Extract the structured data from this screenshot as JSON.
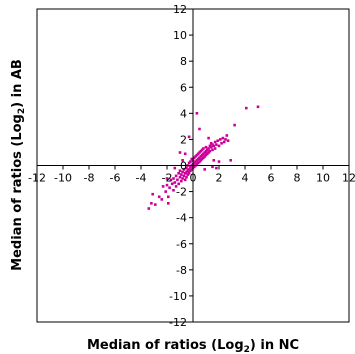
{
  "chart_data": {
    "type": "scatter",
    "xlabel": {
      "prefix": "Median of ratios (Log",
      "subscript": "2",
      "suffix": ") in NC"
    },
    "ylabel": {
      "prefix": "Median of ratios (Log",
      "subscript": "2",
      "suffix": ") in AB"
    },
    "xlim": [
      -12,
      12
    ],
    "ylim": [
      -12,
      12
    ],
    "x_ticks": [
      -12,
      -10,
      -8,
      -6,
      -4,
      -2,
      0,
      2,
      4,
      6,
      8,
      10,
      12
    ],
    "y_ticks": [
      -12,
      -10,
      -8,
      -6,
      -4,
      -2,
      0,
      2,
      4,
      6,
      8,
      10,
      12
    ],
    "grid": false,
    "axes_cross_at_origin": true,
    "marker_color": "#cc0099",
    "points": [
      [
        -3.4,
        -3.3
      ],
      [
        -3.2,
        -2.9
      ],
      [
        -2.9,
        -3.0
      ],
      [
        -2.6,
        -2.4
      ],
      [
        -2.4,
        -2.6
      ],
      [
        -2.3,
        -1.6
      ],
      [
        -2.1,
        -2.0
      ],
      [
        -2.0,
        -1.5
      ],
      [
        -1.9,
        -2.4
      ],
      [
        -1.8,
        -1.7
      ],
      [
        -1.7,
        -1.1
      ],
      [
        -1.6,
        -1.4
      ],
      [
        -1.5,
        -1.9
      ],
      [
        -1.5,
        -1.0
      ],
      [
        -1.4,
        -1.3
      ],
      [
        -1.3,
        -0.8
      ],
      [
        -1.3,
        -1.6
      ],
      [
        -1.2,
        -1.1
      ],
      [
        -1.1,
        -0.6
      ],
      [
        -1.1,
        -1.4
      ],
      [
        -1.0,
        -0.9
      ],
      [
        -1.0,
        -0.4
      ],
      [
        -0.9,
        -1.2
      ],
      [
        -0.9,
        -0.7
      ],
      [
        -0.8,
        -0.5
      ],
      [
        -0.8,
        -1.0
      ],
      [
        -0.7,
        -0.3
      ],
      [
        -0.7,
        -0.8
      ],
      [
        -0.6,
        -0.6
      ],
      [
        -0.6,
        -1.1
      ],
      [
        -0.5,
        -0.2
      ],
      [
        -0.5,
        -0.5
      ],
      [
        -0.5,
        -0.9
      ],
      [
        -0.4,
        -0.4
      ],
      [
        -0.4,
        0.0
      ],
      [
        -0.4,
        -0.7
      ],
      [
        -0.3,
        -0.3
      ],
      [
        -0.3,
        0.2
      ],
      [
        -0.3,
        -0.6
      ],
      [
        -0.2,
        -0.1
      ],
      [
        -0.2,
        -0.4
      ],
      [
        -0.2,
        0.3
      ],
      [
        -0.1,
        0.0
      ],
      [
        -0.1,
        -0.3
      ],
      [
        -0.1,
        0.5
      ],
      [
        0.0,
        0.1
      ],
      [
        0.0,
        -0.2
      ],
      [
        0.0,
        0.4
      ],
      [
        0.1,
        0.2
      ],
      [
        0.1,
        -0.1
      ],
      [
        0.1,
        0.6
      ],
      [
        0.2,
        0.3
      ],
      [
        0.2,
        0.0
      ],
      [
        0.2,
        0.7
      ],
      [
        0.3,
        0.4
      ],
      [
        0.3,
        0.1
      ],
      [
        0.3,
        0.8
      ],
      [
        0.4,
        0.5
      ],
      [
        0.4,
        0.2
      ],
      [
        0.4,
        0.9
      ],
      [
        0.5,
        0.6
      ],
      [
        0.5,
        0.3
      ],
      [
        0.5,
        1.0
      ],
      [
        0.6,
        0.7
      ],
      [
        0.6,
        0.4
      ],
      [
        0.6,
        1.1
      ],
      [
        0.7,
        0.8
      ],
      [
        0.7,
        0.5
      ],
      [
        0.7,
        1.2
      ],
      [
        0.8,
        0.9
      ],
      [
        0.8,
        0.6
      ],
      [
        0.8,
        1.3
      ],
      [
        0.9,
        1.0
      ],
      [
        0.9,
        0.7
      ],
      [
        1.0,
        1.1
      ],
      [
        1.0,
        0.8
      ],
      [
        1.0,
        1.4
      ],
      [
        1.1,
        1.2
      ],
      [
        1.1,
        0.9
      ],
      [
        1.2,
        1.3
      ],
      [
        1.2,
        1.0
      ],
      [
        1.3,
        1.5
      ],
      [
        1.3,
        1.1
      ],
      [
        1.4,
        1.4
      ],
      [
        1.4,
        1.7
      ],
      [
        1.5,
        1.2
      ],
      [
        1.5,
        1.6
      ],
      [
        1.6,
        1.5
      ],
      [
        1.7,
        1.8
      ],
      [
        1.7,
        1.3
      ],
      [
        1.8,
        1.6
      ],
      [
        1.9,
        1.9
      ],
      [
        2.0,
        1.5
      ],
      [
        2.1,
        2.0
      ],
      [
        2.2,
        1.7
      ],
      [
        2.3,
        2.1
      ],
      [
        2.4,
        1.8
      ],
      [
        2.5,
        2.0
      ],
      [
        2.7,
        1.9
      ],
      [
        2.9,
        0.4
      ],
      [
        2.0,
        0.3
      ],
      [
        1.5,
        -0.1
      ],
      [
        3.2,
        3.1
      ],
      [
        4.1,
        4.4
      ],
      [
        5.0,
        4.5
      ],
      [
        0.3,
        4.0
      ],
      [
        -0.3,
        2.2
      ],
      [
        0.5,
        2.8
      ],
      [
        -1.0,
        1.0
      ],
      [
        -2.0,
        -1.0
      ],
      [
        1.8,
        -0.2
      ],
      [
        -0.6,
        0.9
      ],
      [
        0.9,
        -0.3
      ],
      [
        2.6,
        2.3
      ],
      [
        -3.1,
        -2.2
      ],
      [
        -1.9,
        -2.9
      ],
      [
        -0.8,
        0.4
      ],
      [
        1.2,
        2.1
      ],
      [
        1.6,
        0.4
      ],
      [
        -1.4,
        -0.2
      ]
    ]
  }
}
